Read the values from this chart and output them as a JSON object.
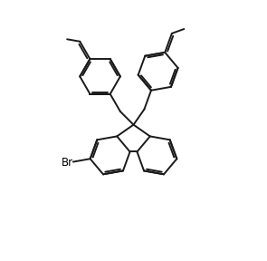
{
  "background_color": "#ffffff",
  "line_color": "#1a1a1a",
  "line_width": 1.4,
  "text_color": "#000000",
  "font_size": 8.5,
  "figsize": [
    2.95,
    2.88
  ],
  "dpi": 100
}
